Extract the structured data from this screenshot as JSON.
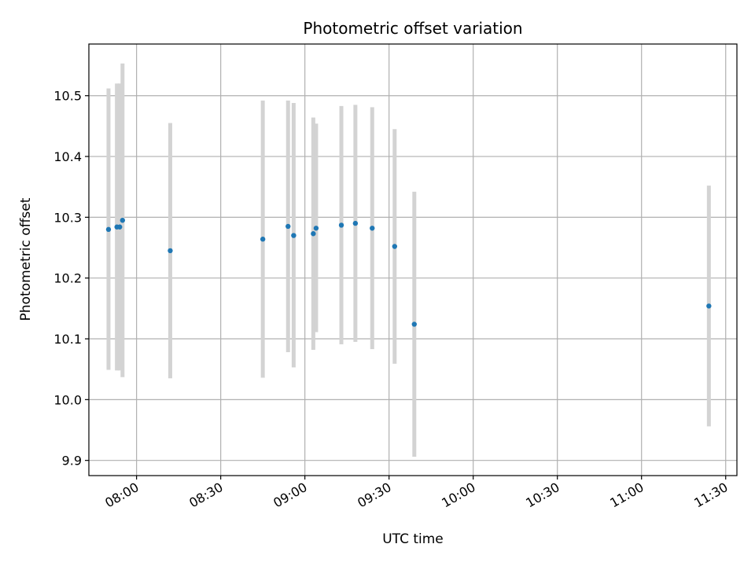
{
  "chart_data": {
    "type": "scatter",
    "title": "Photometric offset variation",
    "xlabel": "UTC time",
    "ylabel": "Photometric offset",
    "xlim": [
      "07:43",
      "11:34"
    ],
    "ylim": [
      9.875,
      10.585
    ],
    "grid": true,
    "x_ticks": [
      "08:00",
      "08:30",
      "09:00",
      "09:30",
      "10:00",
      "10:30",
      "11:00",
      "11:30"
    ],
    "y_ticks": [
      "9.9",
      "10.0",
      "10.1",
      "10.2",
      "10.3",
      "10.4",
      "10.5"
    ],
    "marker_color": "#1f77b4",
    "errorbar_color": "#d3d3d3",
    "points": [
      {
        "x": "07:50",
        "y": 10.28,
        "ymin": 10.049,
        "ymax": 10.512
      },
      {
        "x": "07:53",
        "y": 10.284,
        "ymin": 10.048,
        "ymax": 10.52
      },
      {
        "x": "07:54",
        "y": 10.284,
        "ymin": 10.048,
        "ymax": 10.52
      },
      {
        "x": "07:55",
        "y": 10.295,
        "ymin": 10.037,
        "ymax": 10.553
      },
      {
        "x": "08:12",
        "y": 10.245,
        "ymin": 10.035,
        "ymax": 10.455
      },
      {
        "x": "08:45",
        "y": 10.264,
        "ymin": 10.036,
        "ymax": 10.492
      },
      {
        "x": "08:54",
        "y": 10.285,
        "ymin": 10.078,
        "ymax": 10.492
      },
      {
        "x": "08:56",
        "y": 10.27,
        "ymin": 10.053,
        "ymax": 10.488
      },
      {
        "x": "09:03",
        "y": 10.273,
        "ymin": 10.082,
        "ymax": 10.464
      },
      {
        "x": "09:04",
        "y": 10.282,
        "ymin": 10.111,
        "ymax": 10.454
      },
      {
        "x": "09:13",
        "y": 10.287,
        "ymin": 10.091,
        "ymax": 10.483
      },
      {
        "x": "09:18",
        "y": 10.29,
        "ymin": 10.095,
        "ymax": 10.485
      },
      {
        "x": "09:24",
        "y": 10.282,
        "ymin": 10.083,
        "ymax": 10.481
      },
      {
        "x": "09:32",
        "y": 10.252,
        "ymin": 10.059,
        "ymax": 10.445
      },
      {
        "x": "09:39",
        "y": 10.124,
        "ymin": 9.906,
        "ymax": 10.342
      },
      {
        "x": "11:24",
        "y": 10.154,
        "ymin": 9.956,
        "ymax": 10.352
      }
    ]
  }
}
